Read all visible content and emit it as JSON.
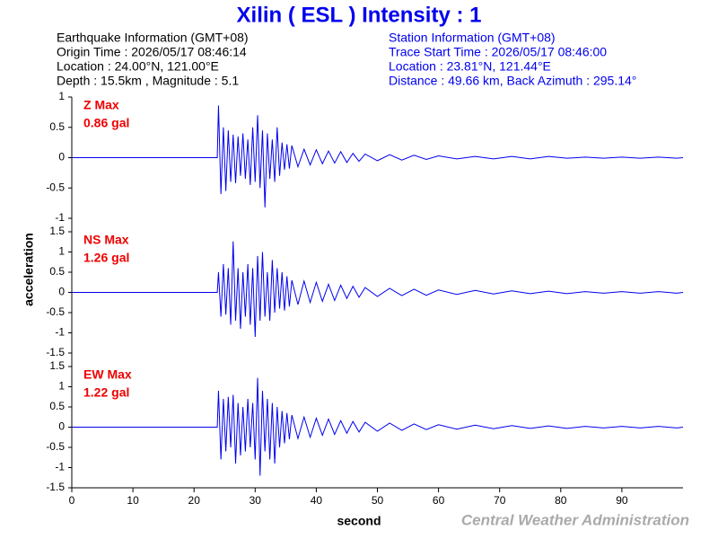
{
  "title": "Xilin ( ESL ) Intensity : 1",
  "earthquake_info": [
    "Earthquake Information  (GMT+08)",
    "Origin Time : 2026/05/17 08:46:14",
    "Location : 24.00°N, 121.00°E",
    "Depth : 15.5km , Magnitude : 5.1"
  ],
  "station_info": [
    "Station Information  (GMT+08)",
    "Trace Start Time : 2026/05/17 08:46:00",
    "Location : 23.81°N, 121.44°E",
    "Distance : 49.66 km, Back Azimuth : 295.14°"
  ],
  "y_label": "acceleration",
  "x_label": "second",
  "footer": "Central Weather Administration",
  "chart_data": [
    {
      "type": "line",
      "annotation": [
        "Z Max",
        "0.86 gal"
      ],
      "color": "#0000ee",
      "xlim": [
        0,
        100
      ],
      "ylim": [
        -1,
        1
      ],
      "yticks": [
        -1,
        -0.5,
        0,
        0.5,
        1
      ],
      "x": [
        0,
        23.8,
        24.0,
        24.4,
        24.8,
        25.2,
        25.6,
        26.0,
        26.4,
        26.8,
        27.2,
        27.6,
        28.0,
        28.4,
        28.8,
        29.2,
        29.6,
        30.0,
        30.4,
        30.8,
        31.2,
        31.6,
        32.0,
        32.4,
        32.8,
        33.2,
        33.6,
        34.0,
        34.4,
        34.8,
        35.2,
        35.6,
        36.0,
        37,
        38,
        39,
        40,
        41,
        42,
        43,
        44,
        45,
        46,
        47,
        48,
        50,
        52,
        54,
        56,
        58,
        60,
        63,
        66,
        69,
        72,
        75,
        78,
        81,
        84,
        87,
        90,
        93,
        96,
        99,
        100
      ],
      "values": [
        0,
        0,
        0.86,
        -0.6,
        0.5,
        -0.55,
        0.45,
        -0.4,
        0.38,
        -0.42,
        0.35,
        -0.3,
        0.4,
        -0.35,
        0.3,
        -0.45,
        0.5,
        -0.4,
        0.7,
        -0.5,
        0.45,
        -0.82,
        0.4,
        -0.35,
        0.3,
        -0.4,
        0.5,
        -0.3,
        0.25,
        -0.2,
        0.22,
        -0.18,
        0.2,
        -0.15,
        0.14,
        -0.12,
        0.13,
        -0.1,
        0.11,
        -0.09,
        0.1,
        -0.08,
        0.07,
        -0.06,
        0.06,
        -0.05,
        0.05,
        -0.04,
        0.04,
        -0.03,
        0.03,
        -0.02,
        0.02,
        -0.02,
        0.02,
        -0.02,
        0.02,
        -0.01,
        0.01,
        -0.01,
        0.01,
        -0.01,
        0.01,
        -0.01,
        0
      ]
    },
    {
      "type": "line",
      "annotation": [
        "NS Max",
        "1.26 gal"
      ],
      "color": "#0000ee",
      "xlim": [
        0,
        100
      ],
      "ylim": [
        -1.5,
        1.5
      ],
      "yticks": [
        -1.5,
        -1,
        -0.5,
        0,
        0.5,
        1,
        1.5
      ],
      "x": [
        0,
        23.8,
        24.0,
        24.4,
        24.8,
        25.2,
        25.6,
        26.0,
        26.4,
        26.8,
        27.2,
        27.6,
        28.0,
        28.4,
        28.8,
        29.2,
        29.6,
        30.0,
        30.4,
        30.8,
        31.2,
        31.6,
        32.0,
        32.4,
        32.8,
        33.2,
        33.6,
        34.0,
        34.4,
        34.8,
        35.2,
        35.6,
        36.0,
        37,
        38,
        39,
        40,
        41,
        42,
        43,
        44,
        45,
        46,
        47,
        48,
        50,
        52,
        54,
        56,
        58,
        60,
        63,
        66,
        69,
        72,
        75,
        78,
        81,
        84,
        87,
        90,
        93,
        96,
        99,
        100
      ],
      "values": [
        0,
        0,
        0.5,
        -0.6,
        0.7,
        -0.55,
        0.6,
        -0.8,
        1.26,
        -0.7,
        0.6,
        -0.9,
        0.5,
        -0.6,
        0.7,
        -0.8,
        0.6,
        -1.1,
        0.9,
        -0.7,
        1.0,
        -0.6,
        0.5,
        -0.7,
        0.8,
        -0.5,
        0.6,
        -0.4,
        0.5,
        -0.45,
        0.4,
        -0.35,
        0.3,
        -0.3,
        0.28,
        -0.25,
        0.25,
        -0.22,
        0.2,
        -0.2,
        0.18,
        -0.15,
        0.15,
        -0.12,
        0.12,
        -0.1,
        0.1,
        -0.08,
        0.08,
        -0.07,
        0.06,
        -0.05,
        0.05,
        -0.04,
        0.04,
        -0.03,
        0.03,
        -0.03,
        0.02,
        -0.02,
        0.02,
        -0.02,
        0.02,
        -0.02,
        0
      ]
    },
    {
      "type": "line",
      "annotation": [
        "EW Max",
        "1.22 gal"
      ],
      "color": "#0000ee",
      "xlim": [
        0,
        100
      ],
      "ylim": [
        -1.5,
        1.5
      ],
      "yticks": [
        -1.5,
        -1,
        -0.5,
        0,
        0.5,
        1,
        1.5
      ],
      "xticks": [
        0,
        10,
        20,
        30,
        40,
        50,
        60,
        70,
        80,
        90
      ],
      "x": [
        0,
        23.8,
        24.0,
        24.4,
        24.8,
        25.2,
        25.6,
        26.0,
        26.4,
        26.8,
        27.2,
        27.6,
        28.0,
        28.4,
        28.8,
        29.2,
        29.6,
        30.0,
        30.4,
        30.8,
        31.2,
        31.6,
        32.0,
        32.4,
        32.8,
        33.2,
        33.6,
        34.0,
        34.4,
        34.8,
        35.2,
        35.6,
        36.0,
        37,
        38,
        39,
        40,
        41,
        42,
        43,
        44,
        45,
        46,
        47,
        48,
        50,
        52,
        54,
        56,
        58,
        60,
        63,
        66,
        69,
        72,
        75,
        78,
        81,
        84,
        87,
        90,
        93,
        96,
        99,
        100
      ],
      "values": [
        0,
        0,
        0.9,
        -0.8,
        0.7,
        -0.6,
        0.75,
        -0.5,
        0.8,
        -0.9,
        0.6,
        -0.7,
        0.5,
        -0.6,
        0.7,
        -0.5,
        0.6,
        -0.8,
        1.22,
        -1.2,
        0.9,
        -0.6,
        0.7,
        -0.8,
        0.6,
        -0.9,
        0.5,
        -0.5,
        0.4,
        -0.4,
        0.35,
        -0.3,
        0.3,
        -0.28,
        0.25,
        -0.25,
        0.22,
        -0.2,
        0.2,
        -0.18,
        0.16,
        -0.15,
        0.14,
        -0.12,
        0.12,
        -0.1,
        0.1,
        -0.08,
        0.08,
        -0.06,
        0.06,
        -0.05,
        0.05,
        -0.04,
        0.04,
        -0.03,
        0.03,
        -0.03,
        0.02,
        -0.02,
        0.02,
        -0.02,
        0.02,
        -0.02,
        0
      ]
    }
  ]
}
